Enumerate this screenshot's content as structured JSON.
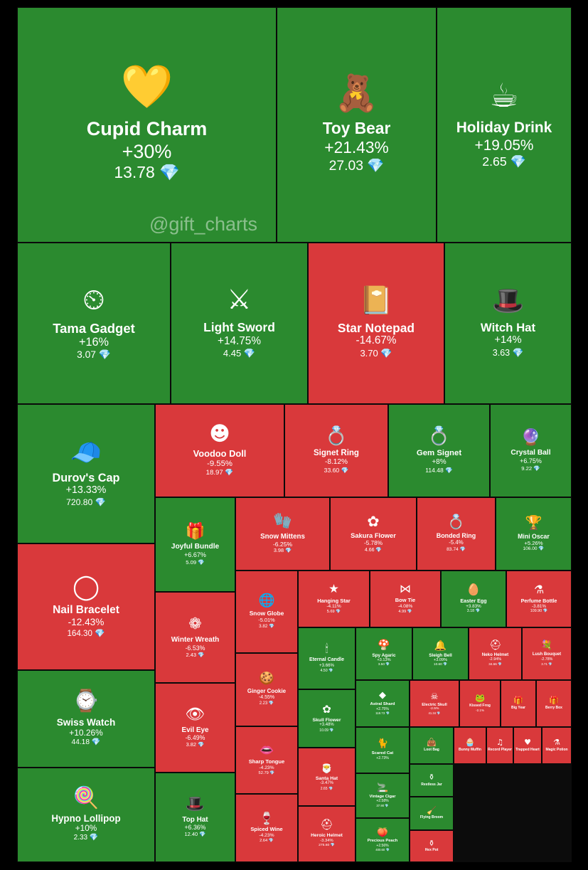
{
  "watermark": "@gift_charts",
  "currency_icon": "gem-icon",
  "colors": {
    "up": "#2b8a2f",
    "down": "#d9393b"
  },
  "chart_data": {
    "type": "treemap",
    "value_unit": "TON",
    "items": [
      {
        "name": "Cupid Charm",
        "change": "+30%",
        "price": "13.78",
        "trend": "up",
        "icon": "heart-lock"
      },
      {
        "name": "Toy Bear",
        "change": "+21.43%",
        "price": "27.03",
        "trend": "up",
        "icon": "teddy-bear"
      },
      {
        "name": "Holiday Drink",
        "change": "+19.05%",
        "price": "2.65",
        "trend": "up",
        "icon": "drink"
      },
      {
        "name": "Tama Gadget",
        "change": "+16%",
        "price": "3.07",
        "trend": "up",
        "icon": "tamagotchi"
      },
      {
        "name": "Light Sword",
        "change": "+14.75%",
        "price": "4.45",
        "trend": "up",
        "icon": "sword"
      },
      {
        "name": "Star Notepad",
        "change": "-14.67%",
        "price": "3.70",
        "trend": "down",
        "icon": "notepad"
      },
      {
        "name": "Witch Hat",
        "change": "+14%",
        "price": "3.63",
        "trend": "up",
        "icon": "witch-hat"
      },
      {
        "name": "Durov's Cap",
        "change": "+13.33%",
        "price": "720.80",
        "trend": "up",
        "icon": "cap"
      },
      {
        "name": "Voodoo Doll",
        "change": "-9.55%",
        "price": "18.97",
        "trend": "down",
        "icon": "doll"
      },
      {
        "name": "Signet Ring",
        "change": "-8.12%",
        "price": "33.60",
        "trend": "down",
        "icon": "ring"
      },
      {
        "name": "Gem Signet",
        "change": "+8%",
        "price": "114.48",
        "trend": "up",
        "icon": "gem-ring"
      },
      {
        "name": "Crystal Ball",
        "change": "+6.75%",
        "price": "9.22",
        "trend": "up",
        "icon": "crystal-ball"
      },
      {
        "name": "Nail Bracelet",
        "change": "-12.43%",
        "price": "164.30",
        "trend": "down",
        "icon": "bracelet"
      },
      {
        "name": "Joyful Bundle",
        "change": "+6.67%",
        "price": "5.09",
        "trend": "up",
        "icon": "bundle"
      },
      {
        "name": "Snow Mittens",
        "change": "-6.25%",
        "price": "3.98",
        "trend": "down",
        "icon": "mittens"
      },
      {
        "name": "Sakura Flower",
        "change": "-5.78%",
        "price": "4.66",
        "trend": "down",
        "icon": "flower"
      },
      {
        "name": "Bonded Ring",
        "change": "-5.4%",
        "price": "83.74",
        "trend": "down",
        "icon": "ring"
      },
      {
        "name": "Mini Oscar",
        "change": "+5.26%",
        "price": "106.00",
        "trend": "up",
        "icon": "trophy"
      },
      {
        "name": "Snow Globe",
        "change": "-5.01%",
        "price": "3.82",
        "trend": "down",
        "icon": "globe"
      },
      {
        "name": "Hanging Star",
        "change": "-4.11%",
        "price": "5.69",
        "trend": "down",
        "icon": "star"
      },
      {
        "name": "Bow Tie",
        "change": "-4.08%",
        "price": "4.99",
        "trend": "down",
        "icon": "bow-tie"
      },
      {
        "name": "Easter Egg",
        "change": "+3.83%",
        "price": "3.18",
        "trend": "up",
        "icon": "egg"
      },
      {
        "name": "Perfume Bottle",
        "change": "-3.81%",
        "price": "109.90",
        "trend": "down",
        "icon": "perfume"
      },
      {
        "name": "Winter Wreath",
        "change": "-6.53%",
        "price": "2.43",
        "trend": "down",
        "icon": "wreath"
      },
      {
        "name": "Swiss Watch",
        "change": "+10.26%",
        "price": "44.18",
        "trend": "up",
        "icon": "watch"
      },
      {
        "name": "Eternal Candle",
        "change": "+3.66%",
        "price": "4.50",
        "trend": "up",
        "icon": "candle"
      },
      {
        "name": "Spy Agaric",
        "change": "+3.13%",
        "price": "3.50",
        "trend": "up",
        "icon": "mushroom"
      },
      {
        "name": "Sleigh Bell",
        "change": "+3.09%",
        "price": "10.60",
        "trend": "up",
        "icon": "bell"
      },
      {
        "name": "Neko Helmet",
        "change": "-2.94%",
        "price": "34.66",
        "trend": "down",
        "icon": "helmet"
      },
      {
        "name": "Lush Bouquet",
        "change": "-2.78%",
        "price": "3.71",
        "trend": "down",
        "icon": "bouquet"
      },
      {
        "name": "Ginger Cookie",
        "change": "-4.55%",
        "price": "2.23",
        "trend": "down",
        "icon": "cookie"
      },
      {
        "name": "Evil Eye",
        "change": "-6.49%",
        "price": "3.82",
        "trend": "down",
        "icon": "eye"
      },
      {
        "name": "Skull Flower",
        "change": "+3.48%",
        "price": "10.09",
        "trend": "up",
        "icon": "flower"
      },
      {
        "name": "Astral Shard",
        "change": "+2.75%",
        "price": "118.73",
        "trend": "up",
        "icon": "shard"
      },
      {
        "name": "Electric Skull",
        "change": "-2.5%",
        "price": "41.34",
        "trend": "down",
        "icon": "skull"
      },
      {
        "name": "Kissed Frog",
        "change": "-2.1%",
        "price": "",
        "trend": "down",
        "icon": "frog"
      },
      {
        "name": "Big Year",
        "change": "",
        "price": "",
        "trend": "down",
        "icon": "gift"
      },
      {
        "name": "Berry Box",
        "change": "",
        "price": "",
        "trend": "down",
        "icon": "gift"
      },
      {
        "name": "Sharp Tongue",
        "change": "-4.23%",
        "price": "52.79",
        "trend": "down",
        "icon": "lips"
      },
      {
        "name": "Scared Cat",
        "change": "+2.73%",
        "price": "",
        "trend": "up",
        "icon": "cat"
      },
      {
        "name": "Loot Bag",
        "change": "",
        "price": "",
        "trend": "up",
        "icon": "bag"
      },
      {
        "name": "Bunny Muffin",
        "change": "",
        "price": "",
        "trend": "down",
        "icon": "muffin"
      },
      {
        "name": "Record Player",
        "change": "",
        "price": "",
        "trend": "down",
        "icon": "player"
      },
      {
        "name": "Trapped Heart",
        "change": "",
        "price": "",
        "trend": "down",
        "icon": "heart"
      },
      {
        "name": "Magic Potion",
        "change": "",
        "price": "",
        "trend": "down",
        "icon": "potion"
      },
      {
        "name": "Santa Hat",
        "change": "-3.47%",
        "price": "2.65",
        "trend": "down",
        "icon": "santa-hat"
      },
      {
        "name": "Vintage Cigar",
        "change": "+2.58%",
        "price": "37.90",
        "trend": "up",
        "icon": "cigar"
      },
      {
        "name": "Restless Jar",
        "change": "",
        "price": "",
        "trend": "up",
        "icon": "jar"
      },
      {
        "name": "Top Hat",
        "change": "+6.36%",
        "price": "12.40",
        "trend": "up",
        "icon": "top-hat"
      },
      {
        "name": "Hypno Lollipop",
        "change": "+10%",
        "price": "2.33",
        "trend": "up",
        "icon": "lollipop"
      },
      {
        "name": "Spiced Wine",
        "change": "-4.23%",
        "price": "2.64",
        "trend": "down",
        "icon": "wine"
      },
      {
        "name": "Heroic Helmet",
        "change": "-3.34%",
        "price": "275.60",
        "trend": "down",
        "icon": "helmet"
      },
      {
        "name": "Precious Peach",
        "change": "+2.56%",
        "price": "400.60",
        "trend": "up",
        "icon": "peach"
      },
      {
        "name": "Flying Broom",
        "change": "",
        "price": "",
        "trend": "up",
        "icon": "broom"
      },
      {
        "name": "Hex Pot",
        "change": "",
        "price": "",
        "trend": "down",
        "icon": "pot"
      }
    ]
  }
}
